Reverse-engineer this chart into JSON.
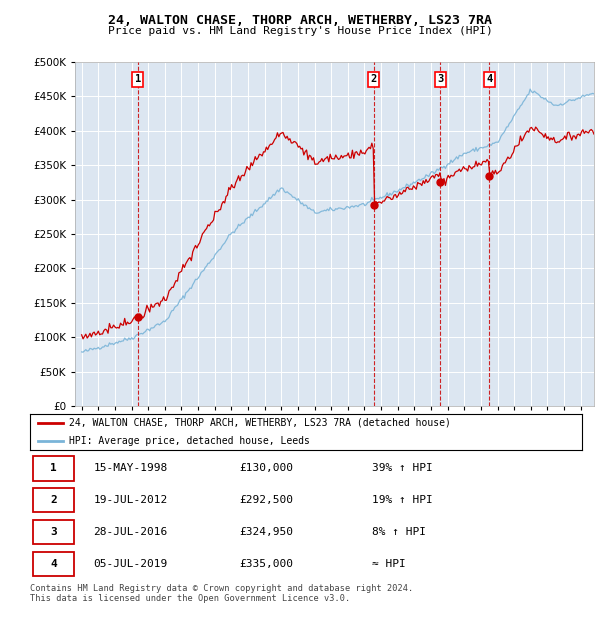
{
  "title": "24, WALTON CHASE, THORP ARCH, WETHERBY, LS23 7RA",
  "subtitle": "Price paid vs. HM Land Registry's House Price Index (HPI)",
  "ylim": [
    0,
    500000
  ],
  "yticks": [
    0,
    50000,
    100000,
    150000,
    200000,
    250000,
    300000,
    350000,
    400000,
    450000,
    500000
  ],
  "sale_prices": [
    130000,
    292500,
    324950,
    335000
  ],
  "sale_labels": [
    "1",
    "2",
    "3",
    "4"
  ],
  "sale_year_floats": [
    1998.37,
    2012.55,
    2016.57,
    2019.51
  ],
  "table_rows": [
    [
      "1",
      "15-MAY-1998",
      "£130,000",
      "39% ↑ HPI"
    ],
    [
      "2",
      "19-JUL-2012",
      "£292,500",
      "19% ↑ HPI"
    ],
    [
      "3",
      "28-JUL-2016",
      "£324,950",
      "8% ↑ HPI"
    ],
    [
      "4",
      "05-JUL-2019",
      "£335,000",
      "≈ HPI"
    ]
  ],
  "legend_line1": "24, WALTON CHASE, THORP ARCH, WETHERBY, LS23 7RA (detached house)",
  "legend_line2": "HPI: Average price, detached house, Leeds",
  "footer": "Contains HM Land Registry data © Crown copyright and database right 2024.\nThis data is licensed under the Open Government Licence v3.0.",
  "bg_color": "#dce6f1",
  "hpi_line_color": "#7ab4d8",
  "price_line_color": "#cc0000",
  "sale_marker_color": "#cc0000",
  "dashed_line_color": "#cc0000",
  "xlim_left": 1994.6,
  "xlim_right": 2025.8
}
